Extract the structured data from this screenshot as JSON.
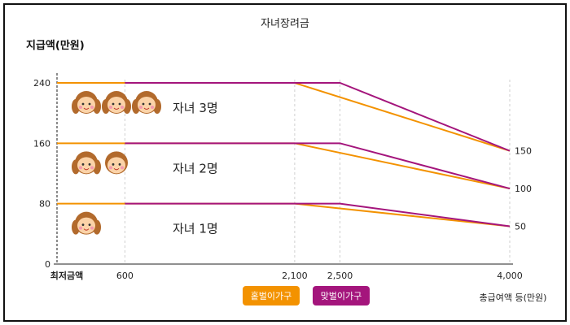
{
  "chart_data": {
    "type": "line",
    "title": "자녀장려금",
    "ylabel": "지급액(만원)",
    "xlabel": "총급여액 등(만원)",
    "x_tick_labels": [
      "최저금액",
      "600",
      "2,100",
      "2,500",
      "4,000"
    ],
    "y_tick_labels": [
      "0",
      "80",
      "160",
      "240"
    ],
    "right_labels": [
      "150",
      "100",
      "50"
    ],
    "ylim": [
      0,
      240
    ],
    "colors": {
      "single_income": "#F39200",
      "dual_income": "#A4157C"
    },
    "legend": [
      {
        "name": "홑벌이가구",
        "color": "#F39200"
      },
      {
        "name": "맞벌이가구",
        "color": "#A4157C"
      }
    ],
    "series": [
      {
        "group": "자녀 3명",
        "type": "홑벌이가구",
        "x": [
          0,
          2100,
          4000
        ],
        "y": [
          240,
          240,
          150
        ]
      },
      {
        "group": "자녀 3명",
        "type": "맞벌이가구",
        "x": [
          600,
          2500,
          4000
        ],
        "y": [
          240,
          240,
          150
        ]
      },
      {
        "group": "자녀 2명",
        "type": "홑벌이가구",
        "x": [
          0,
          2100,
          4000
        ],
        "y": [
          160,
          160,
          100
        ]
      },
      {
        "group": "자녀 2명",
        "type": "맞벌이가구",
        "x": [
          600,
          2500,
          4000
        ],
        "y": [
          160,
          160,
          100
        ]
      },
      {
        "group": "자녀 1명",
        "type": "홑벌이가구",
        "x": [
          0,
          2100,
          4000
        ],
        "y": [
          80,
          80,
          50
        ]
      },
      {
        "group": "자녀 1명",
        "type": "맞벌이가구",
        "x": [
          600,
          2500,
          4000
        ],
        "y": [
          80,
          80,
          50
        ]
      }
    ],
    "annotations": [
      {
        "text": "자녀 3명",
        "children": 3
      },
      {
        "text": "자녀 2명",
        "children": 2
      },
      {
        "text": "자녀 1명",
        "children": 1
      }
    ]
  }
}
